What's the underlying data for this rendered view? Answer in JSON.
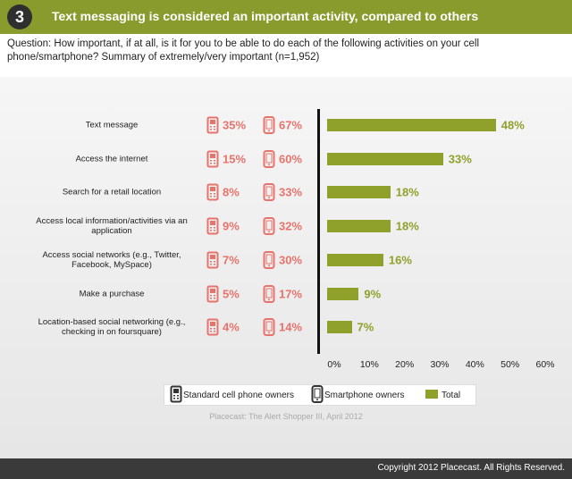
{
  "header": {
    "badge": "3",
    "title": "Text messaging is considered an important activity, compared to others"
  },
  "question": "Question: How important, if at all, is it for you to be able to do each of the following activities on your cell phone/smartphone? Summary of extremely/very important (n=1,952)",
  "chart_data": {
    "type": "bar",
    "orientation": "horizontal",
    "categories": [
      "Text message",
      "Access the internet",
      "Search for a retail location",
      "Access local information/activities via an application",
      "Access social networks (e.g., Twitter, Facebook, MySpace)",
      "Make a purchase",
      "Location-based social networking (e.g., checking in on foursquare)"
    ],
    "series": [
      {
        "name": "Standard cell phone owners",
        "color": "#e8736c",
        "values": [
          35,
          15,
          8,
          9,
          7,
          5,
          4
        ],
        "value_labels": [
          "35%",
          "15%",
          "8%",
          "9%",
          "7%",
          "5%",
          "4%"
        ]
      },
      {
        "name": "Smartphone owners",
        "color": "#e8736c",
        "values": [
          67,
          60,
          33,
          32,
          30,
          17,
          14
        ],
        "value_labels": [
          "67%",
          "60%",
          "33%",
          "32%",
          "30%",
          "17%",
          "14%"
        ]
      },
      {
        "name": "Total",
        "color": "#8fa02b",
        "values": [
          48,
          33,
          18,
          18,
          16,
          9,
          7
        ],
        "value_labels": [
          "48%",
          "33%",
          "18%",
          "18%",
          "16%",
          "9%",
          "7%"
        ]
      }
    ],
    "xlim": [
      0,
      60
    ],
    "xticks": [
      {
        "value": 0,
        "label": "0%"
      },
      {
        "value": 10,
        "label": "10%"
      },
      {
        "value": 20,
        "label": "20%"
      },
      {
        "value": 30,
        "label": "30%"
      },
      {
        "value": 40,
        "label": "40%"
      },
      {
        "value": 50,
        "label": "50%"
      },
      {
        "value": 60,
        "label": "60%"
      }
    ]
  },
  "source": "Placecast: The Alert Shopper III, April 2012",
  "copyright": "Copyright 2012 Placecast. All Rights Reserved."
}
